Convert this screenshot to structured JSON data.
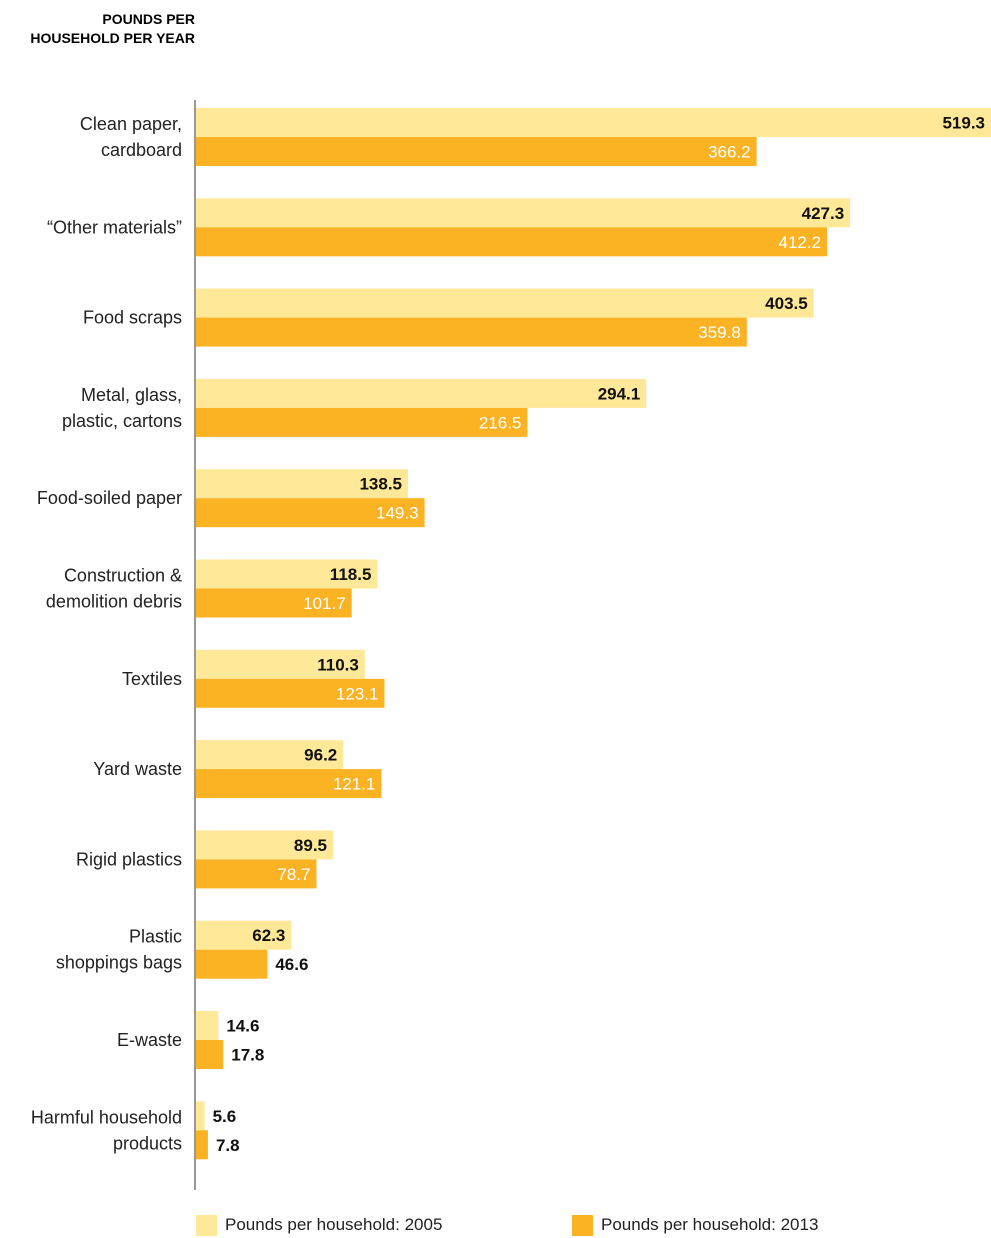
{
  "chart_data": {
    "type": "bar",
    "orientation": "horizontal",
    "ylabel": "POUNDS PER HOUSEHOLD PER YEAR",
    "categories": [
      "Clean paper, cardboard",
      "“Other materials”",
      "Food scraps",
      "Metal, glass, plastic, cartons",
      "Food-soiled paper",
      "Construction & demolition debris",
      "Textiles",
      "Yard waste",
      "Rigid plastics",
      "Plastic shoppings bags",
      "E-waste",
      "Harmful household products"
    ],
    "category_lines": [
      [
        "Clean paper,",
        "cardboard"
      ],
      [
        "“Other materials”"
      ],
      [
        "Food scraps"
      ],
      [
        "Metal, glass,",
        "plastic, cartons"
      ],
      [
        "Food-soiled paper"
      ],
      [
        "Construction &",
        "demolition debris"
      ],
      [
        "Textiles"
      ],
      [
        "Yard waste"
      ],
      [
        "Rigid plastics"
      ],
      [
        "Plastic",
        "shoppings bags"
      ],
      [
        "E-waste"
      ],
      [
        "Harmful household",
        "products"
      ]
    ],
    "series": [
      {
        "name": "Pounds per household: 2005",
        "color": "#FFE999",
        "values": [
          519.3,
          427.3,
          403.5,
          294.1,
          138.5,
          118.5,
          110.3,
          96.2,
          89.5,
          62.3,
          14.6,
          5.6
        ],
        "labels": [
          "519.3",
          "427.3",
          "403.5",
          "294.1",
          "138.5",
          "118.5",
          "110.3",
          "96.2",
          "89.5",
          "62.3",
          "14.6",
          "5.6"
        ]
      },
      {
        "name": "Pounds per household: 2013",
        "color": "#FBB323",
        "values": [
          366.2,
          412.2,
          359.8,
          216.5,
          149.3,
          101.7,
          123.1,
          121.1,
          78.7,
          46.6,
          17.8,
          7.8
        ],
        "labels": [
          "366.2",
          "412.2",
          "359.8",
          "216.5",
          "149.3",
          "101.7",
          "123.1",
          "121.1",
          "78.7",
          "46.6",
          "17.8",
          "7.8"
        ]
      }
    ],
    "xlim": [
      0,
      519.3
    ],
    "grid": false,
    "legend_position": "bottom"
  }
}
